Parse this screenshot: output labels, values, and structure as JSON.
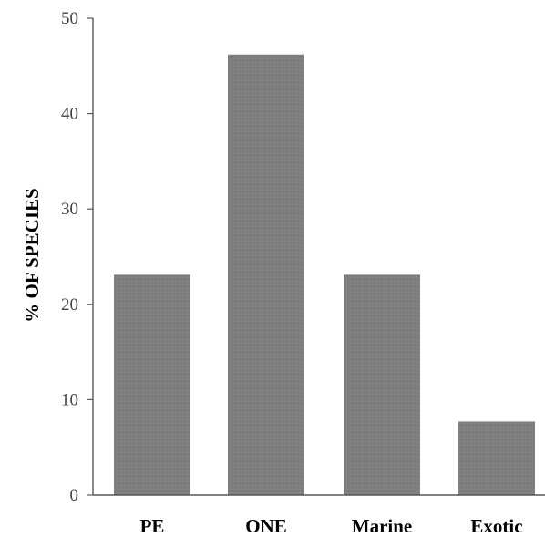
{
  "chart_data": {
    "type": "bar",
    "title": "",
    "xlabel": "",
    "ylabel": "% OF SPECIES",
    "categories": [
      "PE",
      "ONE",
      "Marine",
      "Exotic"
    ],
    "values": [
      23.1,
      46.2,
      23.1,
      7.7
    ],
    "ylim": [
      0,
      50
    ],
    "yticks": [
      0,
      10,
      20,
      30,
      40,
      50
    ],
    "bar_color": "#7f7f7f",
    "axis_color": "#595959",
    "grid": false,
    "legend": "none"
  }
}
